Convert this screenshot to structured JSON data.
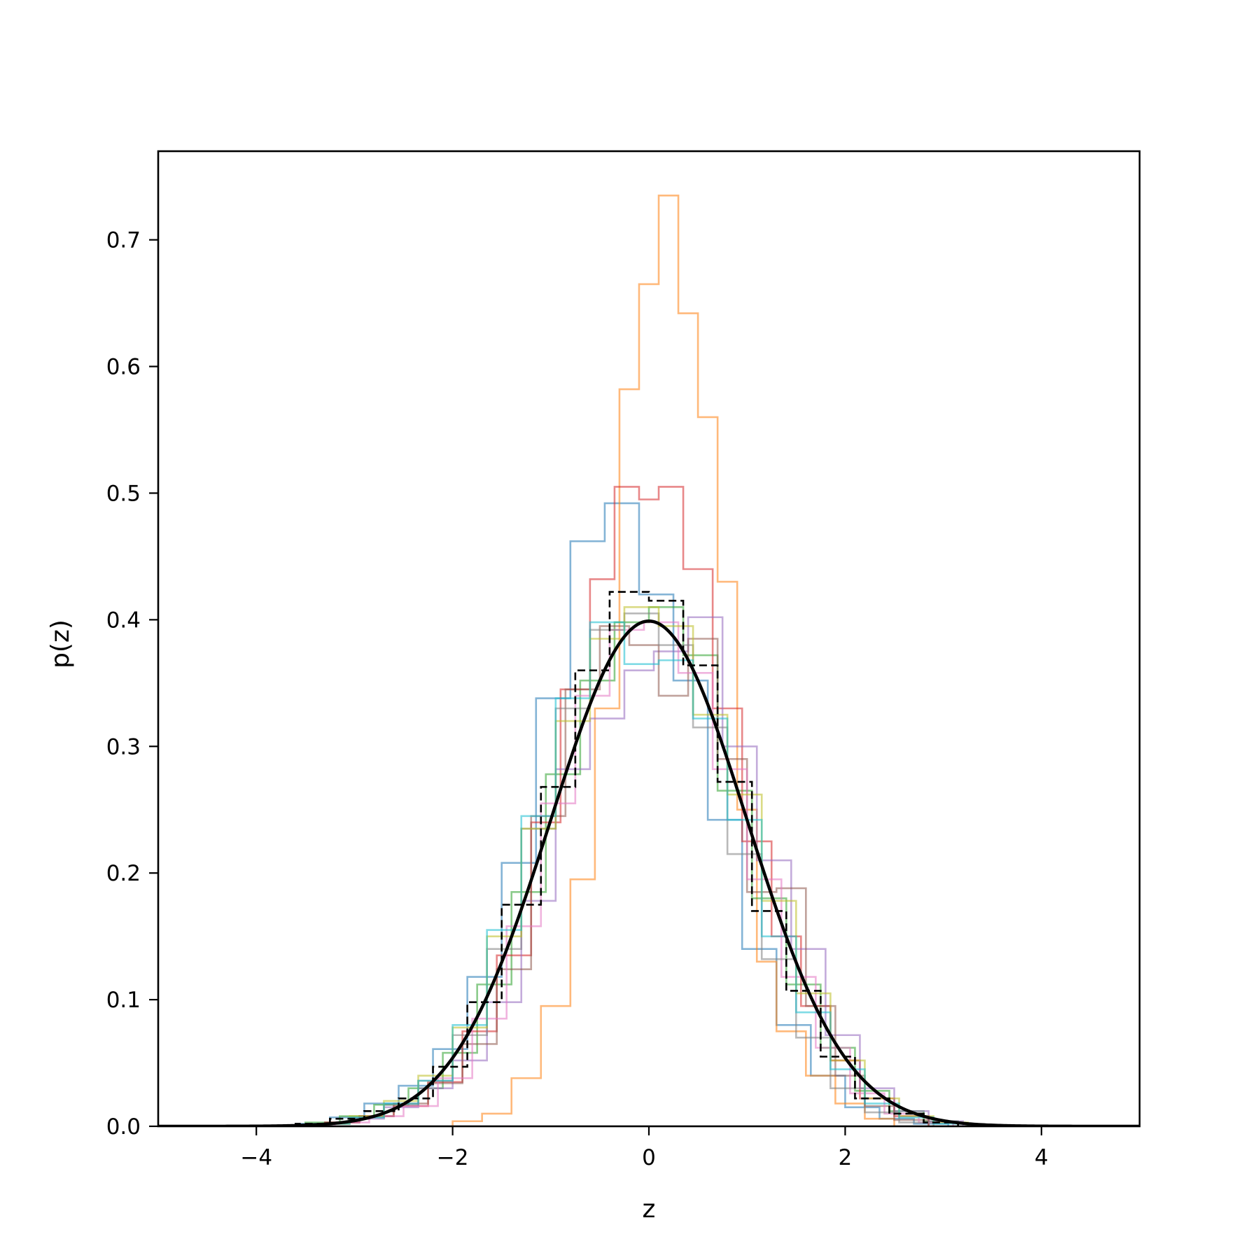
{
  "chart_data": {
    "type": "histogram",
    "title": "",
    "xlabel": "z",
    "ylabel": "p(z)",
    "xlim": [
      -5,
      5
    ],
    "ylim": [
      0,
      0.77
    ],
    "grid": false,
    "legend": "none",
    "x_ticks": [
      {
        "value": -4,
        "label": "−4"
      },
      {
        "value": -2,
        "label": "−2"
      },
      {
        "value": 0,
        "label": "0"
      },
      {
        "value": 2,
        "label": "2"
      },
      {
        "value": 4,
        "label": "4"
      }
    ],
    "y_ticks": [
      {
        "value": 0.0,
        "label": "0.0"
      },
      {
        "value": 0.1,
        "label": "0.1"
      },
      {
        "value": 0.2,
        "label": "0.2"
      },
      {
        "value": 0.3,
        "label": "0.3"
      },
      {
        "value": 0.4,
        "label": "0.4"
      },
      {
        "value": 0.5,
        "label": "0.5"
      },
      {
        "value": 0.6,
        "label": "0.6"
      },
      {
        "value": 0.7,
        "label": "0.7"
      }
    ],
    "reference_histogram": {
      "style": "dashed",
      "color": "#000000",
      "edges": [
        -3.6,
        -3.25,
        -2.9,
        -2.55,
        -2.2,
        -1.85,
        -1.5,
        -1.1,
        -0.75,
        -0.4,
        0.0,
        0.35,
        0.7,
        1.05,
        1.4,
        1.75,
        2.1,
        2.45,
        2.8,
        3.15
      ],
      "values": [
        0.002,
        0.006,
        0.012,
        0.022,
        0.047,
        0.098,
        0.175,
        0.268,
        0.36,
        0.422,
        0.415,
        0.364,
        0.272,
        0.17,
        0.107,
        0.055,
        0.022,
        0.01,
        0.003
      ]
    },
    "reference_curve": {
      "name": "",
      "color": "#000000",
      "function": "standard normal pdf",
      "mean": 0,
      "std": 1
    },
    "series": [
      {
        "color": "#1f77b4",
        "edges": [
          -3.6,
          -3.25,
          -2.9,
          -2.55,
          -2.2,
          -1.85,
          -1.5,
          -1.15,
          -0.8,
          -0.45,
          -0.1,
          0.25,
          0.6,
          0.95,
          1.3,
          1.65,
          2.0,
          2.35,
          2.7,
          3.05
        ],
        "values": [
          0.002,
          0.007,
          0.018,
          0.032,
          0.061,
          0.118,
          0.208,
          0.338,
          0.462,
          0.492,
          0.42,
          0.352,
          0.242,
          0.14,
          0.08,
          0.04,
          0.015,
          0.006,
          0.002
        ]
      },
      {
        "color": "#ff7f0e",
        "edges": [
          -2.0,
          -1.7,
          -1.4,
          -1.1,
          -0.8,
          -0.55,
          -0.3,
          -0.1,
          0.1,
          0.3,
          0.5,
          0.7,
          0.9,
          1.1,
          1.3,
          1.6,
          1.9,
          2.2,
          2.5
        ],
        "values": [
          0.004,
          0.01,
          0.038,
          0.095,
          0.195,
          0.33,
          0.582,
          0.665,
          0.735,
          0.642,
          0.56,
          0.43,
          0.25,
          0.13,
          0.075,
          0.04,
          0.018,
          0.006
        ]
      },
      {
        "color": "#2ca02c",
        "edges": [
          -3.5,
          -3.15,
          -2.8,
          -2.45,
          -2.1,
          -1.75,
          -1.4,
          -1.05,
          -0.7,
          -0.35,
          0.0,
          0.35,
          0.7,
          1.05,
          1.4,
          1.75,
          2.1,
          2.45,
          2.8,
          3.15
        ],
        "values": [
          0.003,
          0.008,
          0.017,
          0.03,
          0.058,
          0.112,
          0.185,
          0.278,
          0.352,
          0.398,
          0.41,
          0.372,
          0.265,
          0.18,
          0.112,
          0.062,
          0.028,
          0.012,
          0.004
        ]
      },
      {
        "color": "#d62728",
        "edges": [
          -3.3,
          -2.95,
          -2.6,
          -2.25,
          -1.9,
          -1.55,
          -1.2,
          -0.9,
          -0.6,
          -0.35,
          -0.1,
          0.1,
          0.35,
          0.65,
          0.95,
          1.25,
          1.55,
          1.85,
          2.15,
          2.5,
          2.85
        ],
        "values": [
          0.003,
          0.008,
          0.016,
          0.035,
          0.075,
          0.135,
          0.24,
          0.345,
          0.432,
          0.505,
          0.495,
          0.505,
          0.44,
          0.33,
          0.225,
          0.15,
          0.095,
          0.052,
          0.022,
          0.008
        ]
      },
      {
        "color": "#9467bd",
        "edges": [
          -3.4,
          -3.05,
          -2.7,
          -2.35,
          -2.0,
          -1.65,
          -1.3,
          -0.95,
          -0.6,
          -0.25,
          0.05,
          0.4,
          0.75,
          1.1,
          1.45,
          1.8,
          2.15,
          2.5,
          2.85,
          3.2
        ],
        "values": [
          0.002,
          0.006,
          0.015,
          0.03,
          0.052,
          0.098,
          0.178,
          0.282,
          0.322,
          0.36,
          0.375,
          0.402,
          0.3,
          0.21,
          0.14,
          0.072,
          0.03,
          0.012,
          0.004
        ]
      },
      {
        "color": "#8c564b",
        "edges": [
          -3.3,
          -2.95,
          -2.6,
          -2.25,
          -1.9,
          -1.55,
          -1.2,
          -0.85,
          -0.5,
          -0.2,
          0.1,
          0.4,
          0.7,
          1.0,
          1.3,
          1.6,
          1.9,
          2.2,
          2.5,
          2.85
        ],
        "values": [
          0.003,
          0.008,
          0.018,
          0.034,
          0.065,
          0.124,
          0.245,
          0.345,
          0.395,
          0.38,
          0.34,
          0.385,
          0.29,
          0.185,
          0.188,
          0.095,
          0.04,
          0.016,
          0.005
        ]
      },
      {
        "color": "#e377c2",
        "edges": [
          -3.2,
          -2.85,
          -2.5,
          -2.15,
          -1.8,
          -1.45,
          -1.1,
          -0.75,
          -0.4,
          -0.05,
          0.3,
          0.65,
          1.0,
          1.35,
          1.7,
          2.05,
          2.4,
          2.75,
          3.1
        ],
        "values": [
          0.003,
          0.008,
          0.016,
          0.038,
          0.085,
          0.158,
          0.255,
          0.34,
          0.392,
          0.398,
          0.358,
          0.282,
          0.195,
          0.118,
          0.062,
          0.026,
          0.01,
          0.003
        ]
      },
      {
        "color": "#7f7f7f",
        "edges": [
          -3.4,
          -3.05,
          -2.7,
          -2.35,
          -2.0,
          -1.65,
          -1.3,
          -0.95,
          -0.6,
          -0.25,
          0.1,
          0.45,
          0.8,
          1.15,
          1.5,
          1.85,
          2.2,
          2.55,
          2.9
        ],
        "values": [
          0.002,
          0.007,
          0.017,
          0.036,
          0.072,
          0.14,
          0.235,
          0.33,
          0.392,
          0.405,
          0.38,
          0.315,
          0.215,
          0.132,
          0.07,
          0.03,
          0.011,
          0.003
        ]
      },
      {
        "color": "#bcbd22",
        "edges": [
          -3.4,
          -3.05,
          -2.7,
          -2.35,
          -2.0,
          -1.65,
          -1.3,
          -0.95,
          -0.6,
          -0.25,
          0.1,
          0.45,
          0.8,
          1.15,
          1.5,
          1.85,
          2.2,
          2.55,
          2.9,
          3.25
        ],
        "values": [
          0.002,
          0.008,
          0.02,
          0.04,
          0.078,
          0.15,
          0.235,
          0.32,
          0.385,
          0.41,
          0.395,
          0.325,
          0.262,
          0.178,
          0.105,
          0.052,
          0.022,
          0.008,
          0.003
        ]
      },
      {
        "color": "#17becf",
        "edges": [
          -3.4,
          -3.05,
          -2.7,
          -2.35,
          -2.0,
          -1.65,
          -1.3,
          -0.95,
          -0.6,
          -0.25,
          0.1,
          0.45,
          0.8,
          1.15,
          1.5,
          1.85,
          2.2,
          2.55,
          2.9,
          3.25
        ],
        "values": [
          0.002,
          0.007,
          0.018,
          0.036,
          0.08,
          0.155,
          0.245,
          0.338,
          0.398,
          0.365,
          0.368,
          0.322,
          0.242,
          0.15,
          0.09,
          0.045,
          0.018,
          0.007,
          0.002
        ]
      }
    ]
  }
}
